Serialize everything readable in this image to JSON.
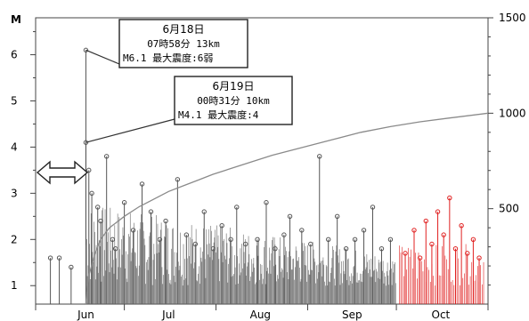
{
  "chart_data": {
    "type": "scatter",
    "y_left_label": "M",
    "y_left_ticks": [
      "1",
      "2",
      "3",
      "4",
      "5",
      "6"
    ],
    "y_left_range": [
      0.6,
      6.8
    ],
    "y_right_ticks": [
      "500",
      "1000",
      "1500"
    ],
    "y_right_range": [
      0,
      1500
    ],
    "x_range_days": [
      0,
      153
    ],
    "x_month_labels": [
      {
        "label": "Jun",
        "day": 17
      },
      {
        "label": "Jul",
        "day": 45
      },
      {
        "label": "Aug",
        "day": 76
      },
      {
        "label": "Sep",
        "day": 107
      },
      {
        "label": "Oct",
        "day": 137
      }
    ],
    "x_month_boundaries": [
      0,
      30,
      61,
      92,
      122,
      153
    ],
    "events_stems": [
      {
        "d": 5,
        "m": 1.6
      },
      {
        "d": 8,
        "m": 1.6
      },
      {
        "d": 12,
        "m": 1.4
      },
      {
        "d": 17,
        "m": 6.1
      },
      {
        "d": 17,
        "m": 4.1
      },
      {
        "d": 18,
        "m": 3.5
      },
      {
        "d": 19,
        "m": 3.0
      },
      {
        "d": 21,
        "m": 2.7
      },
      {
        "d": 22,
        "m": 2.4
      },
      {
        "d": 24,
        "m": 3.8
      },
      {
        "d": 26,
        "m": 2.0
      },
      {
        "d": 27,
        "m": 1.8
      },
      {
        "d": 30,
        "m": 2.8
      },
      {
        "d": 33,
        "m": 2.2
      },
      {
        "d": 36,
        "m": 3.2
      },
      {
        "d": 39,
        "m": 2.6
      },
      {
        "d": 42,
        "m": 2.0
      },
      {
        "d": 44,
        "m": 2.4
      },
      {
        "d": 48,
        "m": 3.3
      },
      {
        "d": 51,
        "m": 2.1
      },
      {
        "d": 54,
        "m": 1.9
      },
      {
        "d": 57,
        "m": 2.6
      },
      {
        "d": 60,
        "m": 1.8
      },
      {
        "d": 63,
        "m": 2.3
      },
      {
        "d": 66,
        "m": 2.0
      },
      {
        "d": 68,
        "m": 2.7
      },
      {
        "d": 71,
        "m": 1.9
      },
      {
        "d": 75,
        "m": 2.0
      },
      {
        "d": 78,
        "m": 2.8
      },
      {
        "d": 81,
        "m": 1.8
      },
      {
        "d": 84,
        "m": 2.1
      },
      {
        "d": 86,
        "m": 2.5
      },
      {
        "d": 90,
        "m": 2.2
      },
      {
        "d": 93,
        "m": 1.9
      },
      {
        "d": 96,
        "m": 3.8
      },
      {
        "d": 99,
        "m": 2.0
      },
      {
        "d": 102,
        "m": 2.5
      },
      {
        "d": 105,
        "m": 1.8
      },
      {
        "d": 108,
        "m": 2.0
      },
      {
        "d": 111,
        "m": 2.2
      },
      {
        "d": 114,
        "m": 2.7
      },
      {
        "d": 117,
        "m": 1.8
      },
      {
        "d": 120,
        "m": 2.0
      }
    ],
    "events_stems_red": [
      {
        "d": 125,
        "m": 1.7
      },
      {
        "d": 128,
        "m": 2.2
      },
      {
        "d": 130,
        "m": 1.6
      },
      {
        "d": 132,
        "m": 2.4
      },
      {
        "d": 134,
        "m": 1.9
      },
      {
        "d": 136,
        "m": 2.6
      },
      {
        "d": 138,
        "m": 2.1
      },
      {
        "d": 140,
        "m": 2.9
      },
      {
        "d": 142,
        "m": 1.8
      },
      {
        "d": 144,
        "m": 2.3
      },
      {
        "d": 146,
        "m": 1.7
      },
      {
        "d": 148,
        "m": 2.0
      },
      {
        "d": 150,
        "m": 1.6
      }
    ],
    "cumulative_count": {
      "x": [
        17,
        18,
        20,
        22,
        25,
        30,
        35,
        40,
        45,
        50,
        55,
        60,
        70,
        80,
        90,
        100,
        110,
        120,
        130,
        140,
        153
      ],
      "y": [
        0,
        150,
        260,
        340,
        400,
        460,
        510,
        550,
        590,
        620,
        650,
        680,
        730,
        780,
        820,
        860,
        900,
        930,
        955,
        975,
        1000
      ]
    },
    "callouts": [
      {
        "line1": "6月18日",
        "line2": "07時58分 13km",
        "line3": "M6.1 最大震度:6弱",
        "day": 17,
        "m": 6.1
      },
      {
        "line1": "6月19日",
        "line2": "00時31分 10km",
        "line3": "M4.1 最大震度:4",
        "day": 17,
        "m": 4.1
      }
    ],
    "colors": {
      "stem": "#555555",
      "stem_red": "#e02020",
      "curve": "#8a8a8a",
      "frame": "#444444"
    }
  }
}
